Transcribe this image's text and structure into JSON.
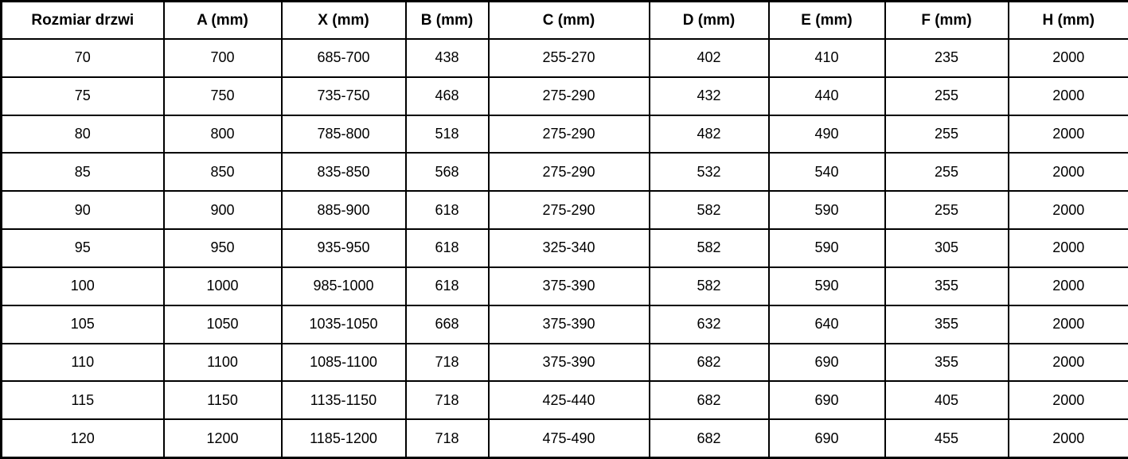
{
  "table": {
    "columns": [
      "Rozmiar drzwi",
      "A (mm)",
      "X (mm)",
      "B (mm)",
      "C (mm)",
      "D (mm)",
      "E (mm)",
      "F (mm)",
      "H (mm)"
    ],
    "rows": [
      [
        "70",
        "700",
        "685-700",
        "438",
        "255-270",
        "402",
        "410",
        "235",
        "2000"
      ],
      [
        "75",
        "750",
        "735-750",
        "468",
        "275-290",
        "432",
        "440",
        "255",
        "2000"
      ],
      [
        "80",
        "800",
        "785-800",
        "518",
        "275-290",
        "482",
        "490",
        "255",
        "2000"
      ],
      [
        "85",
        "850",
        "835-850",
        "568",
        "275-290",
        "532",
        "540",
        "255",
        "2000"
      ],
      [
        "90",
        "900",
        "885-900",
        "618",
        "275-290",
        "582",
        "590",
        "255",
        "2000"
      ],
      [
        "95",
        "950",
        "935-950",
        "618",
        "325-340",
        "582",
        "590",
        "305",
        "2000"
      ],
      [
        "100",
        "1000",
        "985-1000",
        "618",
        "375-390",
        "582",
        "590",
        "355",
        "2000"
      ],
      [
        "105",
        "1050",
        "1035-1050",
        "668",
        "375-390",
        "632",
        "640",
        "355",
        "2000"
      ],
      [
        "110",
        "1100",
        "1085-1100",
        "718",
        "375-390",
        "682",
        "690",
        "355",
        "2000"
      ],
      [
        "115",
        "1150",
        "1135-1150",
        "718",
        "425-440",
        "682",
        "690",
        "405",
        "2000"
      ],
      [
        "120",
        "1200",
        "1185-1200",
        "718",
        "475-490",
        "682",
        "690",
        "455",
        "2000"
      ]
    ],
    "colors": {
      "border": "#000000",
      "text": "#000000",
      "background": "#ffffff"
    }
  }
}
